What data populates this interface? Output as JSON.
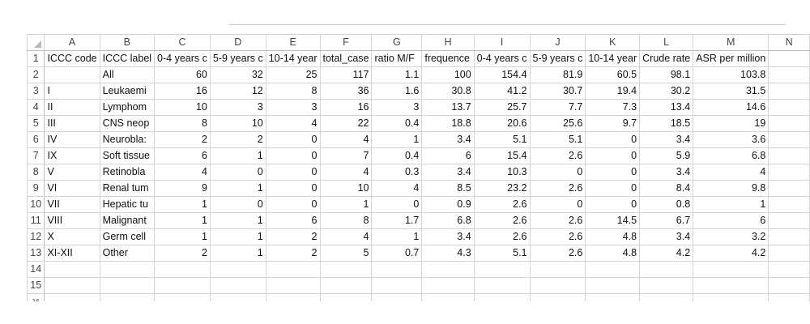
{
  "columns": [
    "A",
    "B",
    "C",
    "D",
    "E",
    "F",
    "G",
    "H",
    "I",
    "J",
    "K",
    "L",
    "M",
    "N"
  ],
  "rows": [
    {
      "n": "1",
      "cells": [
        "ICCC code",
        "ICCC label",
        "0-4 years c",
        "5-9 years c",
        "10-14 year",
        "total_case",
        "ratio M/F",
        "frequence",
        "0-4 years c",
        "5-9 years c",
        "10-14 year",
        "Crude rate",
        "ASR per million",
        ""
      ]
    },
    {
      "n": "2",
      "cells": [
        "",
        "All",
        "60",
        "32",
        "25",
        "117",
        "1.1",
        "100",
        "154.4",
        "81.9",
        "60.5",
        "98.1",
        "103.8",
        ""
      ]
    },
    {
      "n": "3",
      "cells": [
        "I",
        "Leukaemi",
        "16",
        "12",
        "8",
        "36",
        "1.6",
        "30.8",
        "41.2",
        "30.7",
        "19.4",
        "30.2",
        "31.5",
        ""
      ]
    },
    {
      "n": "4",
      "cells": [
        "II",
        "Lymphom",
        "10",
        "3",
        "3",
        "16",
        "3",
        "13.7",
        "25.7",
        "7.7",
        "7.3",
        "13.4",
        "14.6",
        ""
      ]
    },
    {
      "n": "5",
      "cells": [
        "III",
        "CNS neop",
        "8",
        "10",
        "4",
        "22",
        "0.4",
        "18.8",
        "20.6",
        "25.6",
        "9.7",
        "18.5",
        "19",
        ""
      ]
    },
    {
      "n": "6",
      "cells": [
        "IV",
        "Neurobla:",
        "2",
        "2",
        "0",
        "4",
        "1",
        "3.4",
        "5.1",
        "5.1",
        "0",
        "3.4",
        "3.6",
        ""
      ]
    },
    {
      "n": "7",
      "cells": [
        "IX",
        "Soft tissue",
        "6",
        "1",
        "0",
        "7",
        "0.4",
        "6",
        "15.4",
        "2.6",
        "0",
        "5.9",
        "6.8",
        ""
      ]
    },
    {
      "n": "8",
      "cells": [
        "V",
        "Retinobla",
        "4",
        "0",
        "0",
        "4",
        "0.3",
        "3.4",
        "10.3",
        "0",
        "0",
        "3.4",
        "4",
        ""
      ]
    },
    {
      "n": "9",
      "cells": [
        "VI",
        "Renal tum",
        "9",
        "1",
        "0",
        "10",
        "4",
        "8.5",
        "23.2",
        "2.6",
        "0",
        "8.4",
        "9.8",
        ""
      ]
    },
    {
      "n": "10",
      "cells": [
        "VII",
        "Hepatic tu",
        "1",
        "0",
        "0",
        "1",
        "0",
        "0.9",
        "2.6",
        "0",
        "0",
        "0.8",
        "1",
        ""
      ]
    },
    {
      "n": "11",
      "cells": [
        "VIII",
        "Malignant",
        "1",
        "1",
        "6",
        "8",
        "1.7",
        "6.8",
        "2.6",
        "2.6",
        "14.5",
        "6.7",
        "6",
        ""
      ]
    },
    {
      "n": "12",
      "cells": [
        "X",
        "Germ cell",
        "1",
        "1",
        "2",
        "4",
        "1",
        "3.4",
        "2.6",
        "2.6",
        "4.8",
        "3.4",
        "3.2",
        ""
      ]
    },
    {
      "n": "13",
      "cells": [
        "XI-XII",
        "Other",
        "2",
        "1",
        "2",
        "5",
        "0.7",
        "4.3",
        "5.1",
        "2.6",
        "4.8",
        "4.2",
        "4.2",
        ""
      ]
    },
    {
      "n": "14",
      "cells": [
        "",
        "",
        "",
        "",
        "",
        "",
        "",
        "",
        "",
        "",
        "",
        "",
        "",
        ""
      ]
    },
    {
      "n": "15",
      "cells": [
        "",
        "",
        "",
        "",
        "",
        "",
        "",
        "",
        "",
        "",
        "",
        "",
        "",
        ""
      ]
    },
    {
      "n": "16",
      "cells": [
        "",
        "",
        "",
        "",
        "",
        "",
        "",
        "",
        "",
        "",
        "",
        "",
        "",
        ""
      ]
    }
  ]
}
